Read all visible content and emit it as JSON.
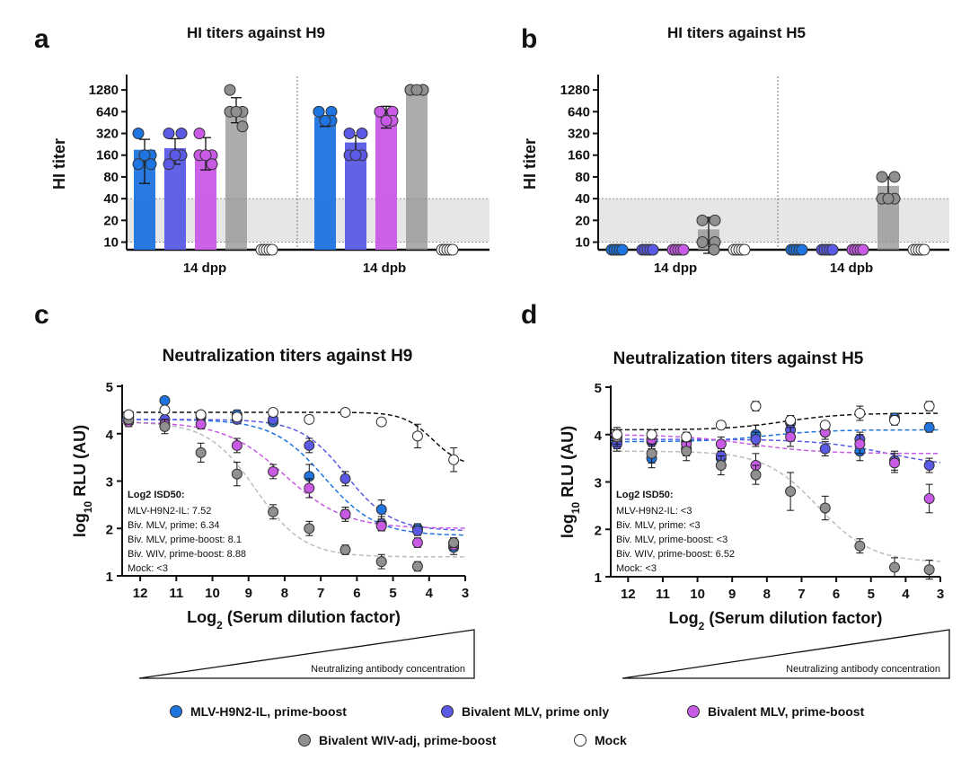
{
  "series_styles": [
    {
      "name": "MLV-H9N2-IL, prime-boost",
      "color": "#1e74e0"
    },
    {
      "name": "Bivalent MLV, prime only",
      "color": "#5a5ae6"
    },
    {
      "name": "Bivalent MLV, prime-boost",
      "color": "#c85ae6"
    },
    {
      "name": "Bivalent WIV-adj, prime-boost",
      "color": "#909090"
    },
    {
      "name": "Mock",
      "color": "#ffffff"
    }
  ],
  "legend": [
    {
      "label": "MLV-H9N2-IL, prime-boost",
      "color": "#1e74e0"
    },
    {
      "label": "Bivalent MLV, prime only",
      "color": "#5a5ae6"
    },
    {
      "label": "Bivalent MLV, prime-boost",
      "color": "#c85ae6"
    },
    {
      "label": "Bivalent WIV-adj, prime-boost",
      "color": "#909090"
    },
    {
      "label": "Mock",
      "color": "#ffffff"
    }
  ],
  "chart_data": [
    {
      "id": "a",
      "letter": "a",
      "type": "bar",
      "title": "HI titers against H9",
      "ylabel": "HI titer",
      "yscale": "log2",
      "yticks": [
        10,
        20,
        40,
        80,
        160,
        320,
        640,
        1280
      ],
      "ytick_labels": [
        "10",
        "20",
        "40",
        "80",
        "160",
        "320",
        "640",
        "1280"
      ],
      "detection_band": [
        10,
        40
      ],
      "groups": [
        "14 dpp",
        "14 dpb"
      ],
      "series": [
        {
          "name": "MLV-H9N2-IL, prime-boost",
          "values": [
            190,
            540
          ],
          "err": [
            [
              65,
              265
            ],
            [
              400,
              560
            ]
          ],
          "points": [
            [
              320,
              160,
              120,
              120,
              160
            ],
            [
              640,
              640,
              640,
              480,
              480
            ]
          ]
        },
        {
          "name": "Bivalent MLV, prime only",
          "values": [
            200,
            240
          ],
          "err": [
            [
              120,
              270
            ],
            [
              180,
              300
            ]
          ],
          "points": [
            [
              320,
              320,
              120,
              160,
              160
            ],
            [
              320,
              320,
              160,
              160,
              160
            ]
          ]
        },
        {
          "name": "Bivalent MLV, prime-boost",
          "values": [
            180,
            680
          ],
          "err": [
            [
              100,
              280
            ],
            [
              380,
              760
            ]
          ],
          "points": [
            [
              320,
              160,
              160,
              120,
              160
            ],
            [
              640,
              640,
              640,
              480,
              480
            ]
          ]
        },
        {
          "name": "Bivalent WIV-adj, prime-boost",
          "values": [
            640,
            1280
          ],
          "err": [
            [
              450,
              1000
            ],
            [
              1280,
              1280
            ]
          ],
          "points": [
            [
              1280,
              640,
              640,
              400,
              640
            ],
            [
              1280,
              1280,
              1280,
              1280,
              1280
            ]
          ]
        },
        {
          "name": "Mock",
          "values": [
            null,
            null
          ],
          "err": [
            null,
            null
          ],
          "points": [
            [
              7,
              7,
              7,
              7,
              7
            ],
            [
              7,
              7,
              7,
              7,
              7
            ]
          ]
        }
      ]
    },
    {
      "id": "b",
      "letter": "b",
      "type": "bar",
      "title": "HI titers against H5",
      "ylabel": "HI titer",
      "yscale": "log2",
      "yticks": [
        10,
        20,
        40,
        80,
        160,
        320,
        640,
        1280
      ],
      "ytick_labels": [
        "10",
        "20",
        "40",
        "80",
        "160",
        "320",
        "640",
        "1280"
      ],
      "detection_band": [
        10,
        40
      ],
      "groups": [
        "14 dpp",
        "14 dpb"
      ],
      "series": [
        {
          "name": "MLV-H9N2-IL, prime-boost",
          "values": [
            null,
            null
          ],
          "err": [
            null,
            null
          ],
          "points": [
            [
              7,
              7,
              7,
              7,
              7
            ],
            [
              7,
              7,
              7,
              7,
              7
            ]
          ]
        },
        {
          "name": "Bivalent MLV, prime only",
          "values": [
            null,
            null
          ],
          "err": [
            null,
            null
          ],
          "points": [
            [
              7,
              7,
              7,
              7,
              7
            ],
            [
              7,
              7,
              7,
              7,
              7
            ]
          ]
        },
        {
          "name": "Bivalent MLV, prime-boost",
          "values": [
            null,
            null
          ],
          "err": [
            null,
            null
          ],
          "points": [
            [
              7,
              7,
              7,
              7,
              7
            ],
            [
              7,
              7,
              7,
              7,
              7
            ]
          ]
        },
        {
          "name": "Bivalent WIV-adj, prime-boost",
          "values": [
            15,
            60
          ],
          "err": [
            [
              7,
              22
            ],
            [
              45,
              80
            ]
          ],
          "points": [
            [
              20,
              20,
              10,
              10,
              7
            ],
            [
              80,
              80,
              40,
              40,
              40
            ]
          ]
        },
        {
          "name": "Mock",
          "values": [
            null,
            null
          ],
          "err": [
            null,
            null
          ],
          "points": [
            [
              7,
              7,
              7,
              7,
              7
            ],
            [
              7,
              7,
              7,
              7,
              7
            ]
          ]
        }
      ]
    },
    {
      "id": "c",
      "letter": "c",
      "type": "scatter",
      "title": "Neutralization titers against H9",
      "ylabel_main": "log",
      "ylabel_sub": "10",
      "ylabel_rest": " RLU (AU)",
      "xlabel_main": "Log",
      "xlabel_sub": "2",
      "xlabel_rest": " (Serum dilution factor)",
      "xlim": [
        12.5,
        3
      ],
      "ylim": [
        1,
        5
      ],
      "xticks": [
        12,
        11,
        10,
        9,
        8,
        7,
        6,
        5,
        4,
        3
      ],
      "yticks": [
        1,
        2,
        3,
        4,
        5
      ],
      "wedge_label": "Neutralizing antibody concentration",
      "annotation": {
        "heading": "Log2 ISD50:",
        "lines": [
          "MLV-H9N2-IL: 7.52",
          "Biv. MLV, prime: 6.34",
          "Biv. MLV, prime-boost: 8.1",
          "Biv. WIV, prime-boost: 8.88",
          "Mock: <3"
        ]
      },
      "x": [
        12.32,
        11.32,
        10.32,
        9.32,
        8.32,
        7.32,
        6.32,
        5.32,
        4.32,
        3.32
      ],
      "series": [
        {
          "name": "MLV-H9N2-IL, prime-boost",
          "y": [
            4.35,
            4.7,
            4.35,
            4.4,
            4.25,
            3.1,
            2.3,
            2.4,
            2.0,
            1.6
          ],
          "err": [
            0.08,
            0.05,
            0.05,
            0.1,
            0.08,
            0.25,
            0.15,
            0.2,
            0.1,
            0.15
          ],
          "fit": {
            "top": 4.3,
            "bottom": 1.85,
            "ec50": 6.9,
            "slope": 1.4
          }
        },
        {
          "name": "Bivalent MLV, prime only",
          "y": [
            4.3,
            4.3,
            4.4,
            4.3,
            4.3,
            3.75,
            3.05,
            2.1,
            1.95,
            1.7
          ],
          "err": [
            0.08,
            0.08,
            0.05,
            0.08,
            0.05,
            0.15,
            0.15,
            0.15,
            0.1,
            0.1
          ],
          "fit": {
            "top": 4.3,
            "bottom": 1.95,
            "ec50": 6.3,
            "slope": 1.6
          }
        },
        {
          "name": "Bivalent MLV, prime-boost",
          "y": [
            4.25,
            4.2,
            4.2,
            3.75,
            3.2,
            2.85,
            2.3,
            2.05,
            1.7,
            1.65
          ],
          "err": [
            0.1,
            0.1,
            0.1,
            0.15,
            0.15,
            0.2,
            0.1,
            0.1,
            0.1,
            0.1
          ],
          "fit": {
            "top": 4.25,
            "bottom": 2.0,
            "ec50": 8.0,
            "slope": 1.2
          }
        },
        {
          "name": "Bivalent WIV-adj, prime-boost",
          "y": [
            4.3,
            4.15,
            3.6,
            3.15,
            2.35,
            2.0,
            1.55,
            1.3,
            1.2,
            1.7
          ],
          "err": [
            0.1,
            0.15,
            0.2,
            0.25,
            0.15,
            0.15,
            0.1,
            0.15,
            0.1,
            0.1
          ],
          "fit": {
            "top": 4.25,
            "bottom": 1.4,
            "ec50": 8.8,
            "slope": 1.5
          }
        },
        {
          "name": "Mock",
          "y": [
            4.4,
            4.5,
            4.4,
            4.35,
            4.45,
            4.3,
            4.45,
            4.25,
            3.95,
            3.45
          ],
          "err": [
            0.05,
            0.05,
            0.05,
            0.05,
            0.05,
            0.08,
            0.05,
            0.08,
            0.25,
            0.25
          ],
          "fit": {
            "top": 4.45,
            "bottom": 3.3,
            "ec50": 3.9,
            "slope": 2.5
          }
        }
      ]
    },
    {
      "id": "d",
      "letter": "d",
      "type": "scatter",
      "title": "Neutralization titers against H5",
      "ylabel_main": "log",
      "ylabel_sub": "10",
      "ylabel_rest": " RLU (AU)",
      "xlabel_main": "Log",
      "xlabel_sub": "2",
      "xlabel_rest": " (Serum dilution factor)",
      "xlim": [
        12.5,
        3
      ],
      "ylim": [
        1,
        5
      ],
      "xticks": [
        12,
        11,
        10,
        9,
        8,
        7,
        6,
        5,
        4,
        3
      ],
      "yticks": [
        1,
        2,
        3,
        4,
        5
      ],
      "wedge_label": "Neutralizing antibody concentration",
      "annotation": {
        "heading": "Log2 ISD50:",
        "lines": [
          "MLV-H9N2-IL: <3",
          "Biv. MLV, prime: <3",
          "Biv. MLV, prime-boost: <3",
          "Biv. WIV, prime-boost: 6.52",
          "Mock: <3"
        ]
      },
      "x": [
        12.32,
        11.32,
        10.32,
        9.32,
        8.32,
        7.32,
        6.32,
        5.32,
        4.32,
        3.32
      ],
      "series": [
        {
          "name": "MLV-H9N2-IL, prime-boost",
          "y": [
            3.85,
            3.5,
            3.85,
            3.5,
            4.0,
            4.25,
            4.05,
            3.65,
            4.35,
            4.15
          ],
          "err": [
            0.15,
            0.2,
            0.15,
            0.15,
            0.2,
            0.15,
            0.15,
            0.2,
            0.1,
            0.1
          ],
          "fit": {
            "top": 3.85,
            "bottom": 4.1,
            "ec50": 8.0,
            "slope": 1.2
          }
        },
        {
          "name": "Bivalent MLV, prime only",
          "y": [
            3.8,
            3.85,
            3.7,
            3.55,
            3.9,
            4.1,
            3.7,
            3.9,
            3.45,
            3.35
          ],
          "err": [
            0.15,
            0.15,
            0.15,
            0.15,
            0.15,
            0.15,
            0.15,
            0.15,
            0.2,
            0.15
          ],
          "fit": {
            "top": 3.9,
            "bottom": 3.3,
            "ec50": 4.5,
            "slope": 1.0
          }
        },
        {
          "name": "Bivalent MLV, prime-boost",
          "y": [
            3.95,
            3.9,
            3.8,
            3.8,
            3.35,
            3.95,
            4.05,
            3.8,
            3.4,
            2.65
          ],
          "err": [
            0.15,
            0.15,
            0.15,
            0.15,
            0.25,
            0.2,
            0.15,
            0.2,
            0.2,
            0.3
          ],
          "fit": {
            "top": 4.0,
            "bottom": 3.6,
            "ec50": 8.5,
            "slope": 1.0
          }
        },
        {
          "name": "Bivalent WIV-adj, prime-boost",
          "y": [
            3.95,
            3.6,
            3.65,
            3.35,
            3.15,
            2.8,
            2.45,
            1.65,
            1.2,
            1.15
          ],
          "err": [
            0.2,
            0.2,
            0.2,
            0.2,
            0.2,
            0.4,
            0.25,
            0.15,
            0.2,
            0.2
          ],
          "fit": {
            "top": 3.65,
            "bottom": 1.3,
            "ec50": 6.52,
            "slope": 1.3
          }
        },
        {
          "name": "Mock",
          "y": [
            4.0,
            4.0,
            3.95,
            4.2,
            4.6,
            4.3,
            4.2,
            4.45,
            4.3,
            4.6
          ],
          "err": [
            0.05,
            0.1,
            0.1,
            0.08,
            0.1,
            0.1,
            0.05,
            0.15,
            0.1,
            0.1
          ],
          "fit": {
            "top": 4.1,
            "bottom": 4.45,
            "ec50": 7.5,
            "slope": 1.2
          }
        }
      ]
    }
  ]
}
